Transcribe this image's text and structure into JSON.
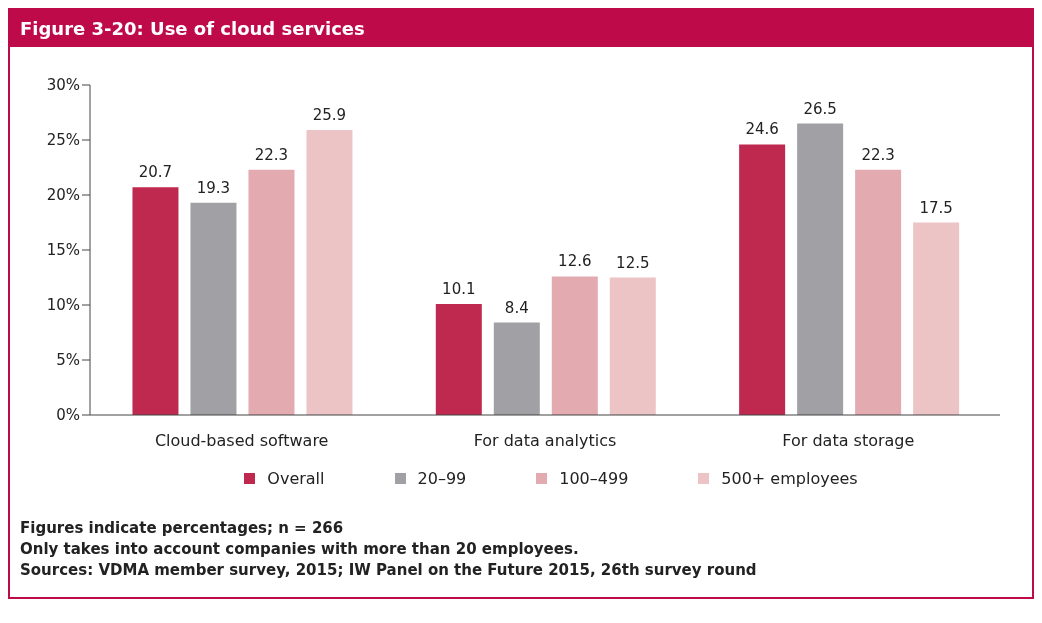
{
  "chart_data": {
    "type": "bar",
    "title": "Figure 3-20: Use of cloud services",
    "categories": [
      "Cloud-based software",
      "For data analytics",
      "For data storage"
    ],
    "series": [
      {
        "name": "Overall",
        "color": "#c0294f",
        "values": [
          20.7,
          10.1,
          24.6
        ]
      },
      {
        "name": "20–99",
        "color": "#a0a0a5",
        "values": [
          19.3,
          8.4,
          26.5
        ]
      },
      {
        "name": "100–499",
        "color": "#e3aab0",
        "values": [
          22.3,
          12.6,
          22.3
        ]
      },
      {
        "name": "500+ employees",
        "color": "#ecc4c6",
        "values": [
          25.9,
          12.5,
          17.5
        ]
      }
    ],
    "ylim": [
      0,
      30
    ],
    "yticks": [
      {
        "value": 0,
        "label": "0%"
      },
      {
        "value": 5,
        "label": "5%"
      },
      {
        "value": 10,
        "label": "10%"
      },
      {
        "value": 15,
        "label": "15%"
      },
      {
        "value": 20,
        "label": "20%"
      },
      {
        "value": 25,
        "label": "25%"
      },
      {
        "value": 30,
        "label": "30%"
      }
    ],
    "grid": false,
    "legend": "bottom",
    "data_labels": true,
    "annotations": [
      "Figures indicate percentages; n = 266",
      "Only takes into account companies with more than 20 employees.",
      "Sources: VDMA member survey, 2015; IW Panel on the Future 2015, 26th survey round"
    ]
  }
}
